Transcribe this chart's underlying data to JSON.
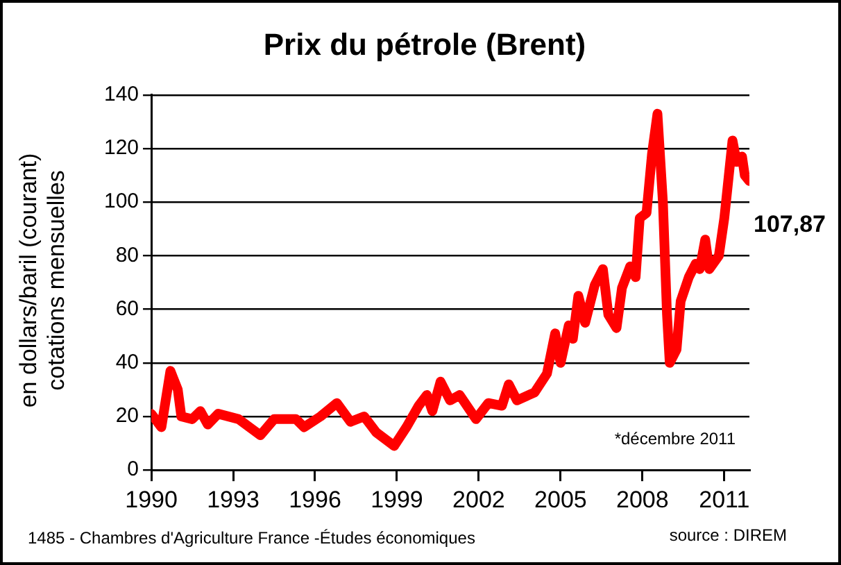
{
  "chart_data": {
    "type": "line",
    "title": "Prix du pétrole (Brent)",
    "ylabel": "en dollars/baril (courant) cotations mensuelles",
    "x": [
      1990.0,
      1990.37,
      1990.7,
      1990.97,
      1991.1,
      1991.5,
      1991.8,
      1992.07,
      1992.45,
      1993.2,
      1994.0,
      1994.5,
      1995.3,
      1995.6,
      1996.2,
      1996.8,
      1997.3,
      1997.8,
      1998.25,
      1998.9,
      1999.35,
      1999.8,
      2000.1,
      2000.3,
      2000.6,
      2000.95,
      2001.3,
      2001.9,
      2002.35,
      2002.85,
      2003.1,
      2003.4,
      2004.05,
      2004.5,
      2004.8,
      2005.0,
      2005.3,
      2005.45,
      2005.65,
      2005.9,
      2006.25,
      2006.55,
      2006.75,
      2007.05,
      2007.25,
      2007.55,
      2007.75,
      2007.9,
      2008.15,
      2008.35,
      2008.55,
      2008.75,
      2008.9,
      2009.0,
      2009.25,
      2009.4,
      2009.7,
      2009.95,
      2010.1,
      2010.3,
      2010.45,
      2010.8,
      2011.0,
      2011.3,
      2011.45,
      2011.65,
      2011.75,
      2011.92
    ],
    "series": [
      {
        "color": "#ff0000",
        "values": [
          21,
          16,
          37,
          30,
          20,
          19,
          22,
          17,
          21,
          19,
          13,
          19,
          19,
          16,
          20,
          25,
          18,
          20,
          14,
          9,
          16,
          24,
          28,
          22,
          33,
          26,
          28,
          19,
          25,
          24,
          32,
          26,
          29,
          36,
          51,
          40,
          54,
          49,
          65,
          55,
          69,
          75,
          58,
          53,
          68,
          76,
          72,
          94,
          96,
          118,
          133,
          100,
          58,
          40,
          45,
          63,
          72,
          77,
          75,
          86,
          75,
          80,
          94,
          123,
          115,
          117,
          110,
          107.87
        ]
      }
    ],
    "xlim": [
      1990,
      2011.92
    ],
    "xticks": [
      1990,
      1993,
      1996,
      1999,
      2002,
      2005,
      2008,
      2011
    ],
    "ylim": [
      0,
      140
    ],
    "yticks": [
      0,
      20,
      40,
      60,
      80,
      100,
      120,
      140
    ],
    "grid": "y",
    "legend": false,
    "annotations": [
      {
        "text": "107,87",
        "x": 2011.92,
        "y": 107.87
      },
      "*décembre 2011",
      "1485 - Chambres d'Agriculture France -Études économiques",
      "source : DIREM"
    ]
  }
}
